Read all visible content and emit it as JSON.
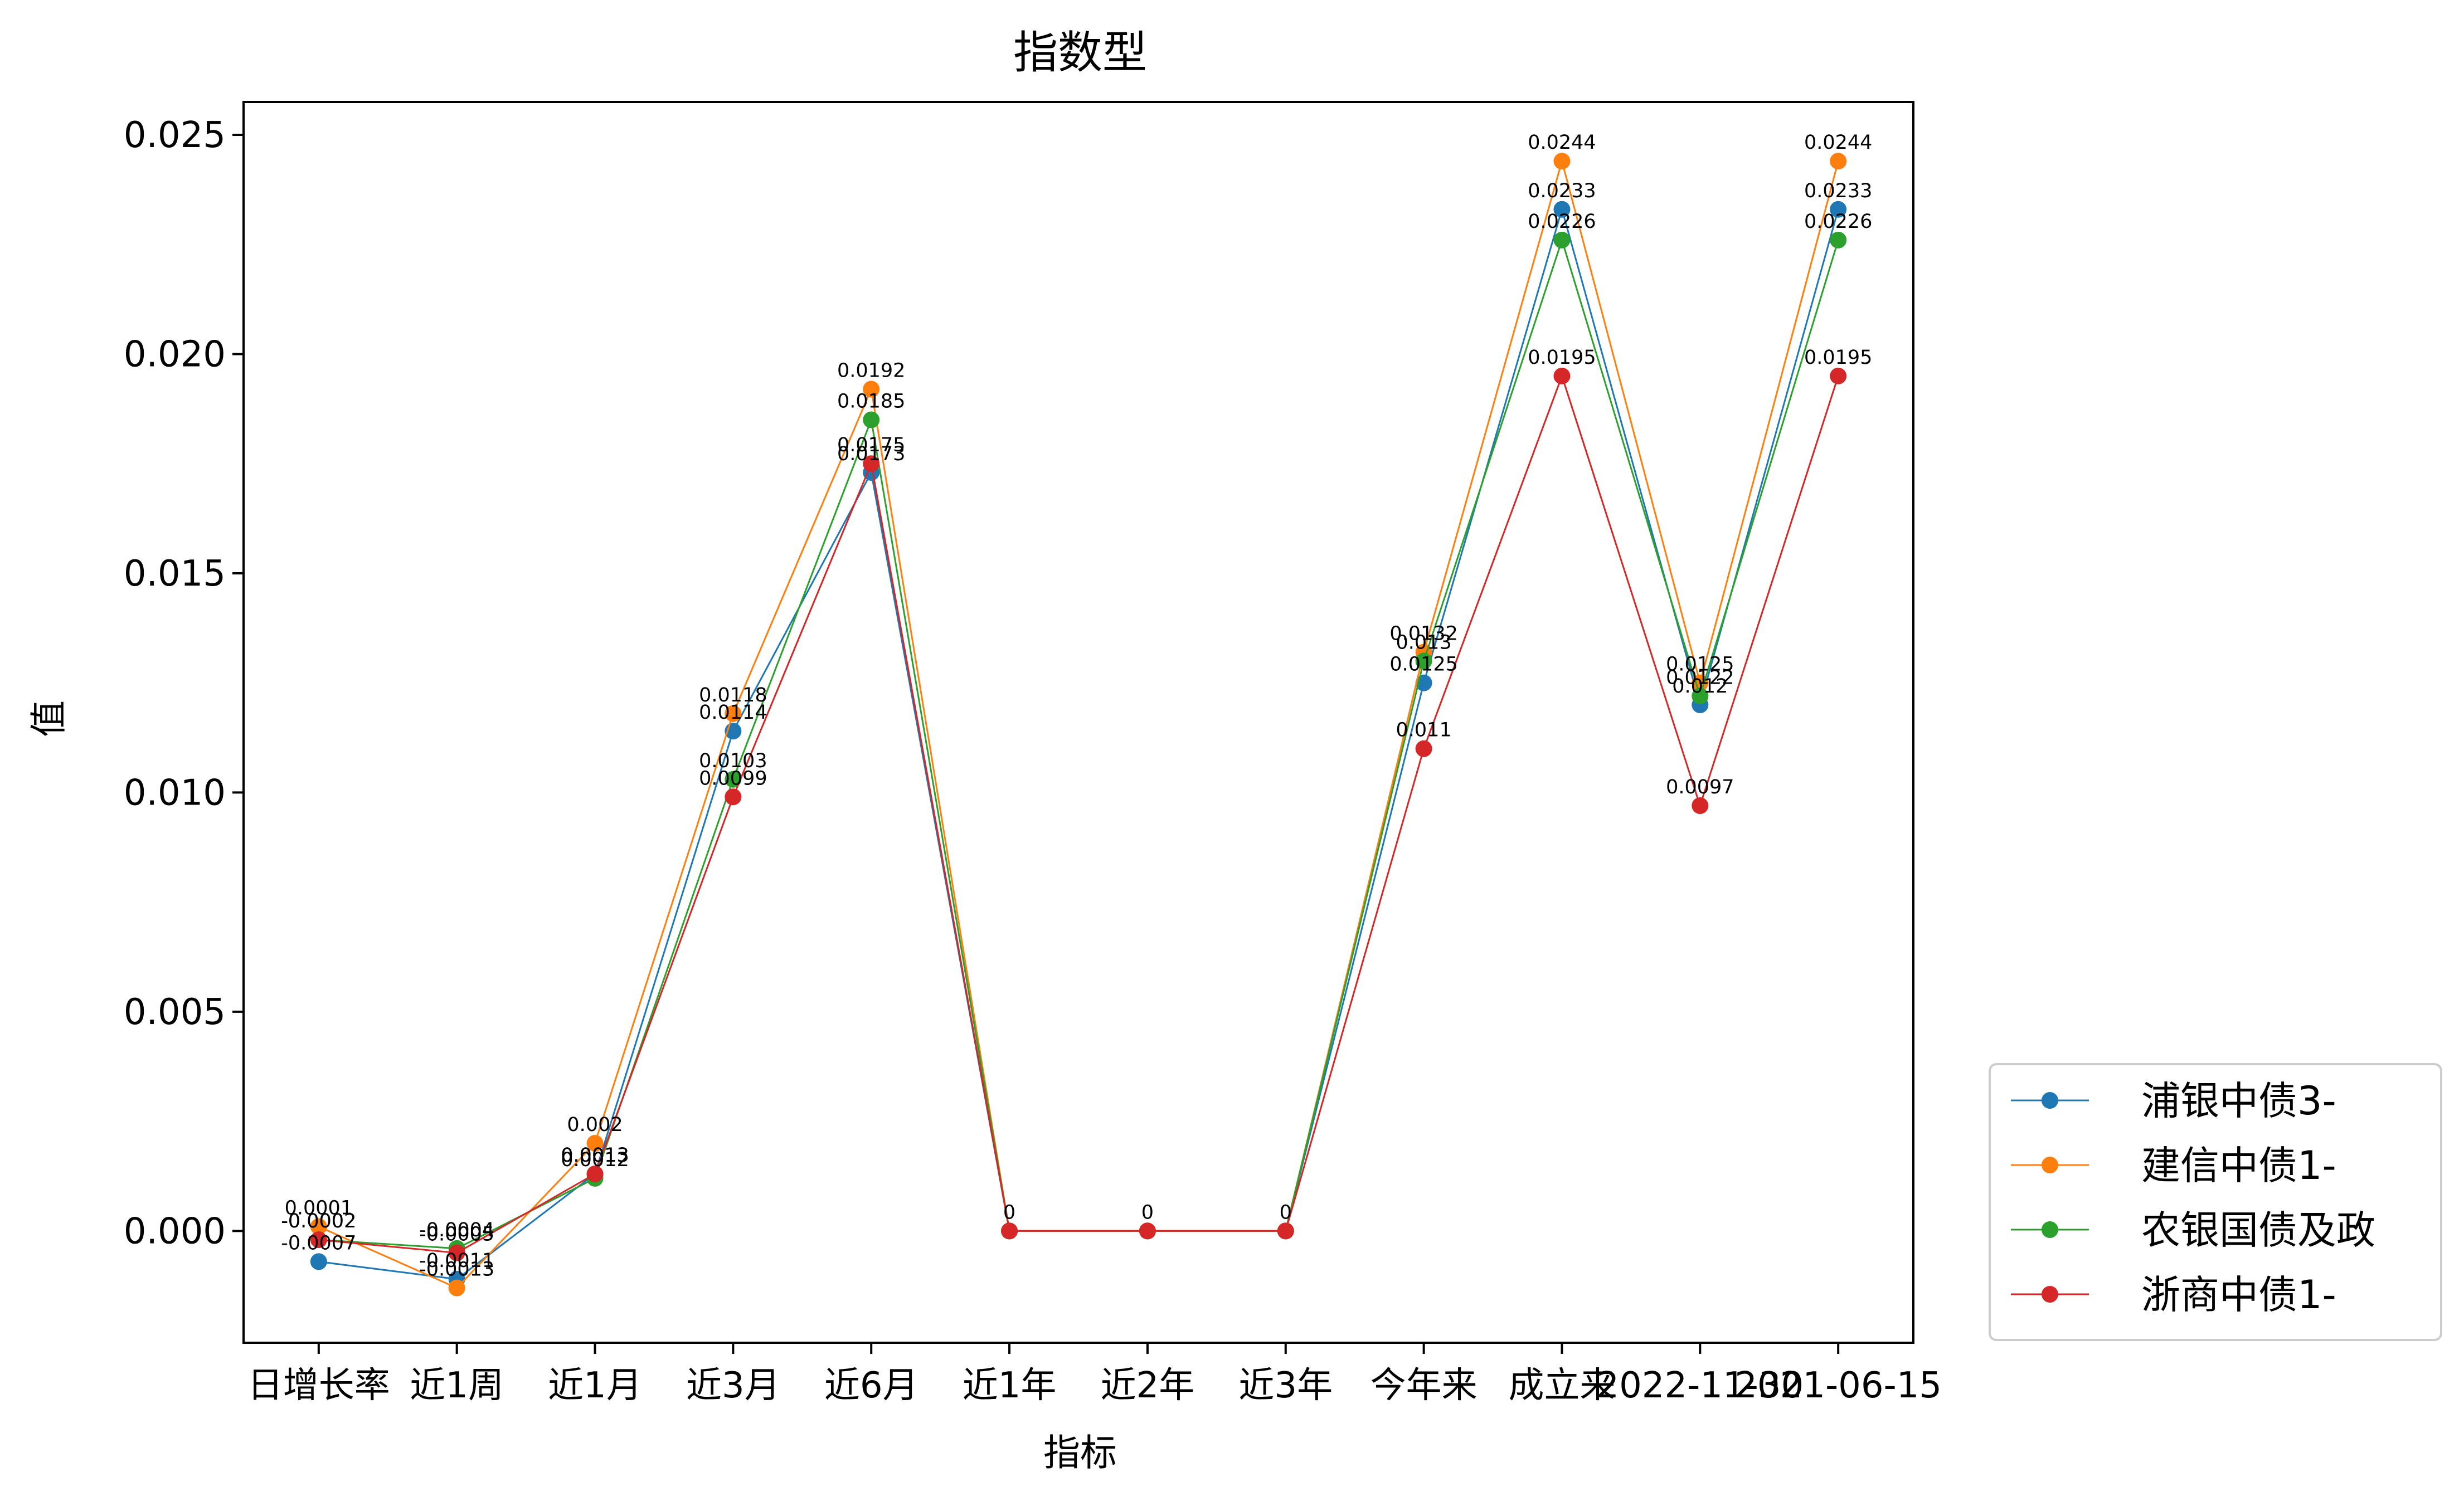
{
  "chart_data": {
    "type": "line",
    "title": "指数型",
    "xlabel": "指标",
    "ylabel": "值",
    "categories": [
      "日增长率",
      "近1周",
      "近1月",
      "近3月",
      "近6月",
      "近1年",
      "近2年",
      "近3年",
      "今年来",
      "成立来",
      "2022-11-30",
      "2021-06-15"
    ],
    "ylim": [
      -0.00255,
      0.02575
    ],
    "yticks": [
      0.0,
      0.005,
      0.01,
      0.015,
      0.02,
      0.025
    ],
    "ytick_labels": [
      "0.000",
      "0.005",
      "0.010",
      "0.015",
      "0.020",
      "0.025"
    ],
    "grid": false,
    "legend_position": "lower-right-outside",
    "series": [
      {
        "name": "浦银中债3-",
        "color": "#1f77b4",
        "values": [
          -0.0007,
          -0.0011,
          0.0013,
          0.0114,
          0.0173,
          0,
          0,
          0,
          0.0125,
          0.0233,
          0.012,
          0.0233
        ],
        "labels": [
          "-0.0007",
          "-0.0011",
          "0.0013",
          "0.0114",
          "0.0173",
          "",
          "",
          "",
          "0.0125",
          "0.0233",
          "0.012",
          "0.0233"
        ]
      },
      {
        "name": "建信中债1-",
        "color": "#ff7f0e",
        "values": [
          0.0001,
          -0.0013,
          0.002,
          0.0118,
          0.0192,
          0,
          0,
          0,
          0.0132,
          0.0244,
          0.0125,
          0.0244
        ],
        "labels": [
          "0.0001",
          "-0.0013",
          "0.002",
          "0.0118",
          "0.0192",
          "",
          "",
          "",
          "0.0132",
          "0.0244",
          "0.0125",
          "0.0244"
        ]
      },
      {
        "name": "农银国债及政",
        "color": "#2ca02c",
        "values": [
          -0.0002,
          -0.0004,
          0.0012,
          0.0103,
          0.0185,
          0,
          0,
          0,
          0.013,
          0.0226,
          0.0122,
          0.0226
        ],
        "labels": [
          "-0.0002",
          "-0.0004",
          "0.0012",
          "0.0103",
          "0.0185",
          "",
          "",
          "",
          "0.013",
          "0.0226",
          "0.0122",
          "0.0226"
        ]
      },
      {
        "name": "浙商中债1-",
        "color": "#d62728",
        "values": [
          -0.0002,
          -0.0005,
          0.0013,
          0.0099,
          0.0175,
          0,
          0,
          0,
          0.011,
          0.0195,
          0.0097,
          0.0195
        ],
        "labels": [
          "-0.0002",
          "-0.0005",
          "0.0013",
          "0.0099",
          "0.0175",
          "0",
          "0",
          "0",
          "0.011",
          "0.0195",
          "0.0097",
          "0.0195"
        ]
      }
    ]
  }
}
